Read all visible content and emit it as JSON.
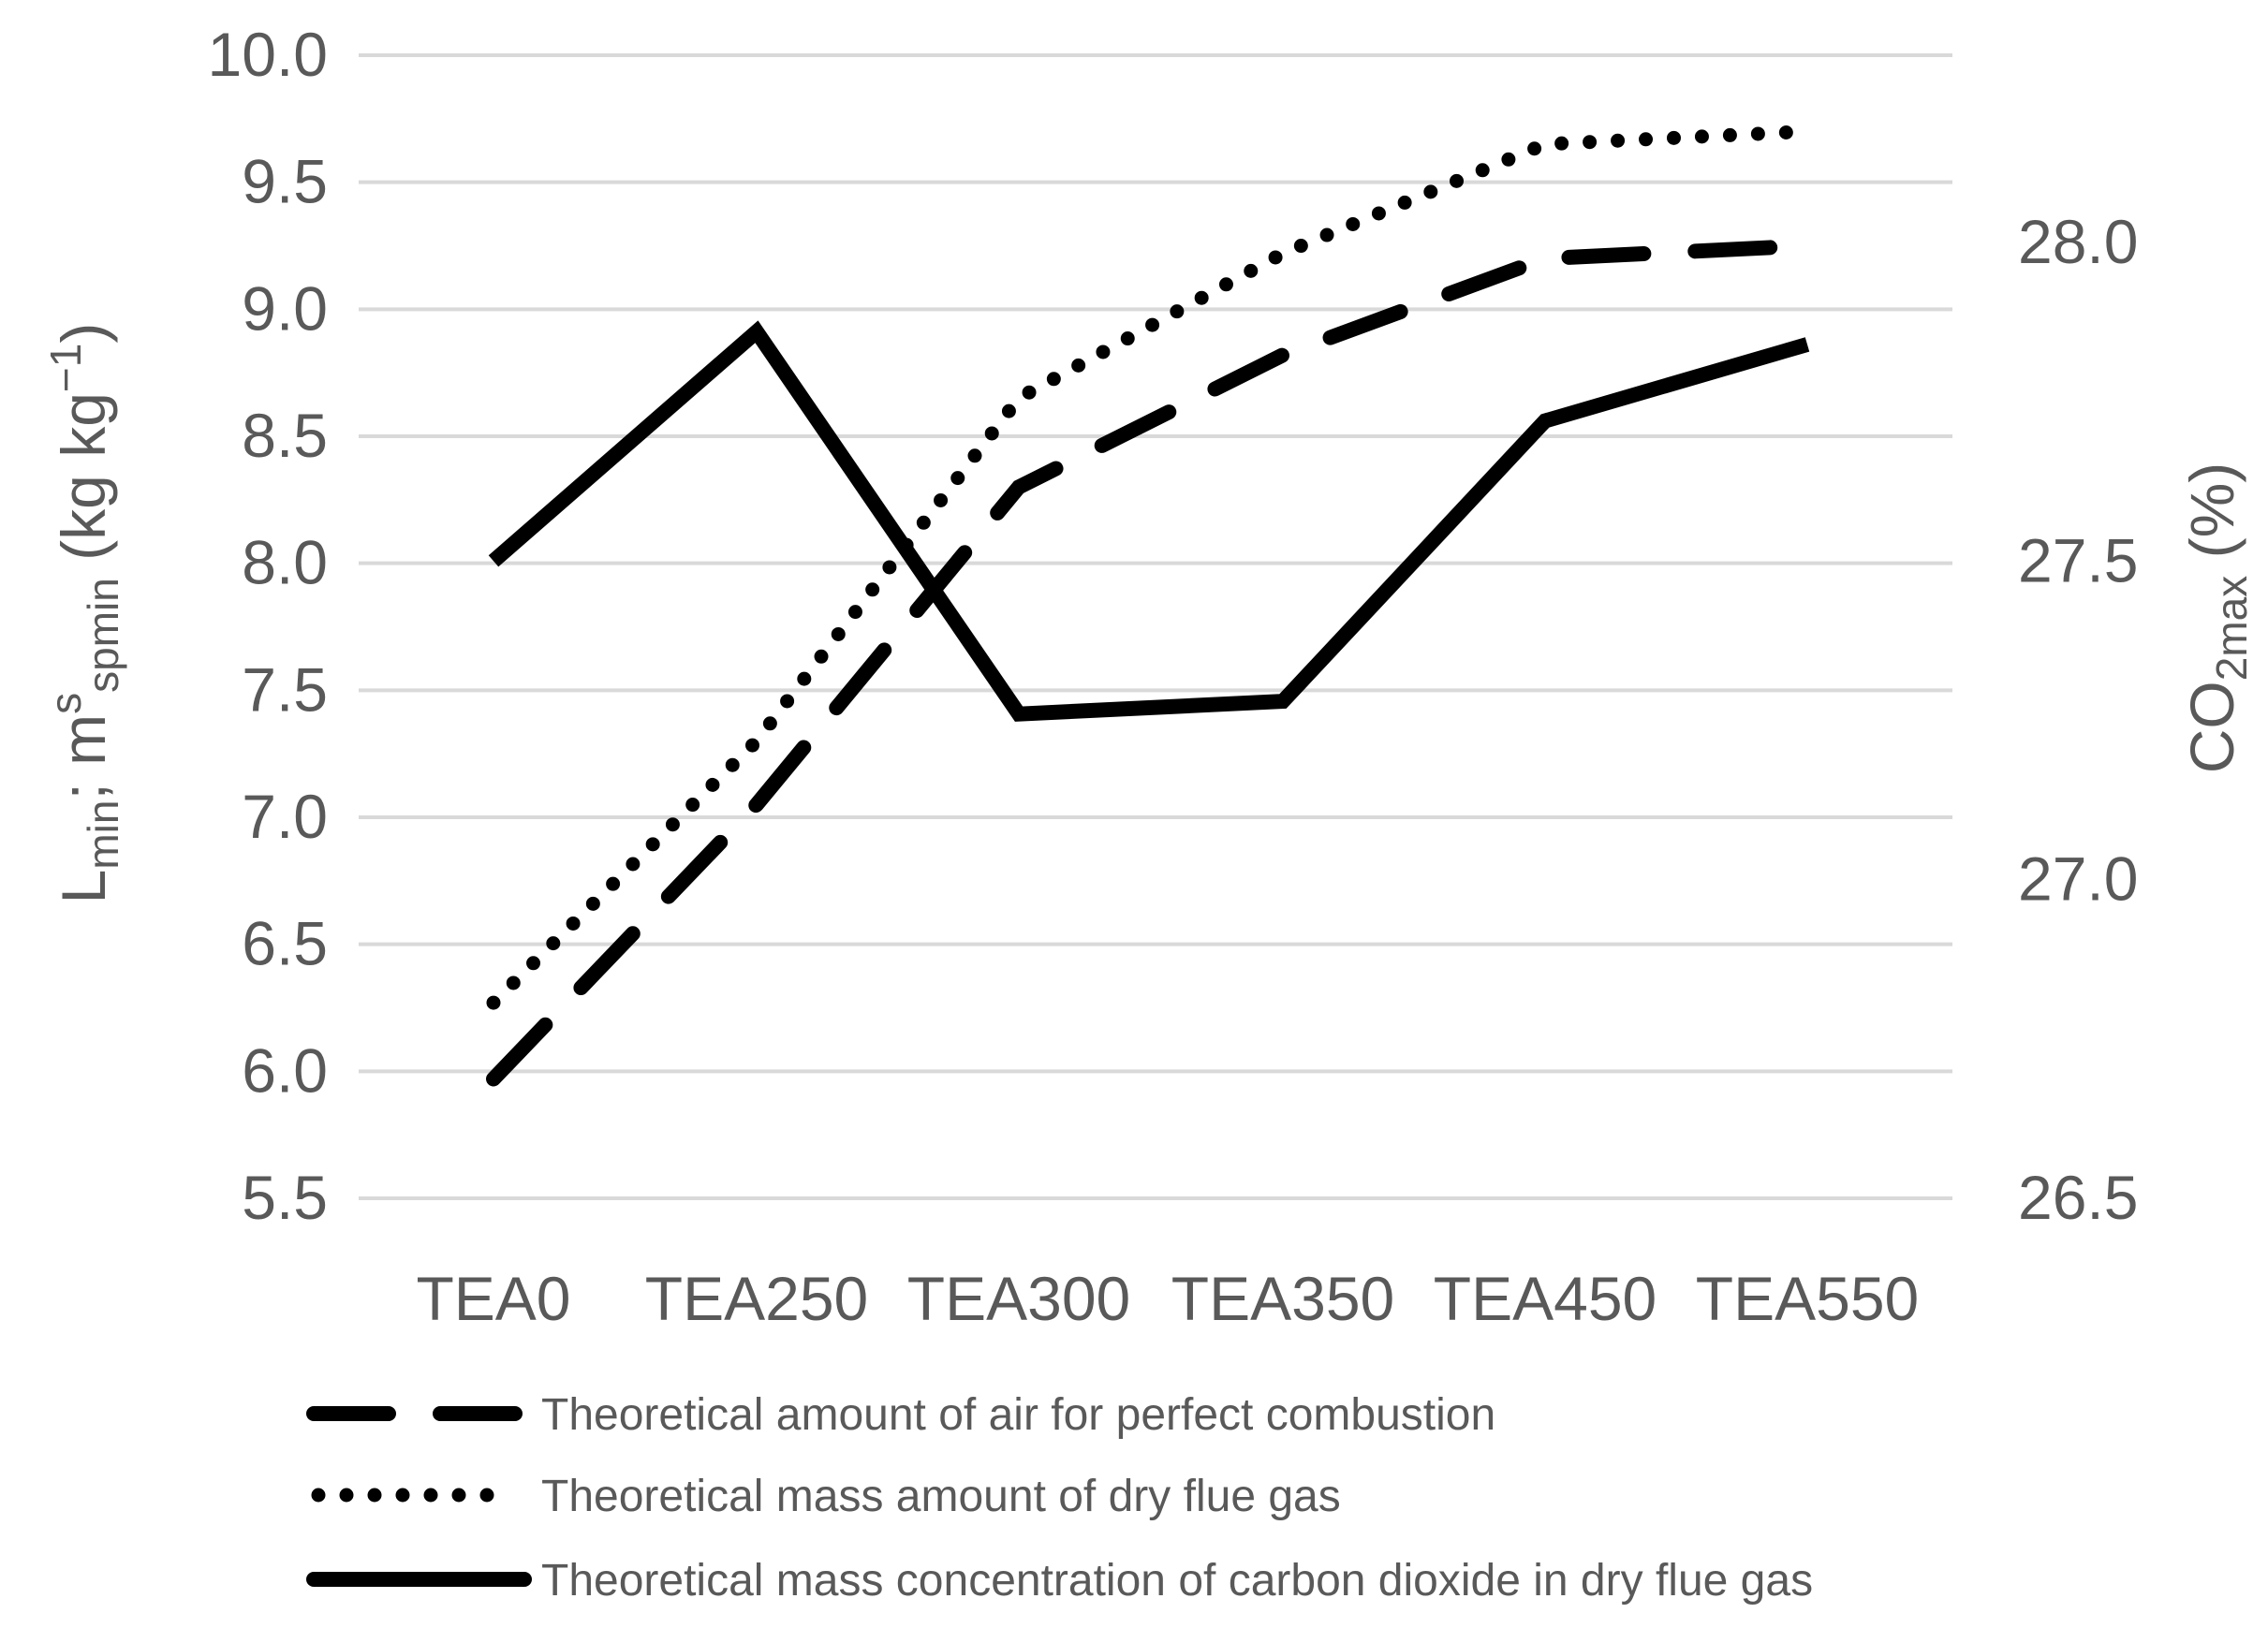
{
  "chart_data": {
    "type": "line",
    "categories": [
      "TEA0",
      "TEA250",
      "TEA300",
      "TEA350",
      "TEA450",
      "TEA550"
    ],
    "y_axis_left": {
      "label_main": "L",
      "label_sub1": "min",
      "label_mid": "; m",
      "label_sup": "s",
      "label_sub2": "spmin",
      "label_unit": " (kg kg",
      "label_unit_sup": "−1",
      "label_close": ")",
      "ylim": [
        5.5,
        10.0
      ],
      "ticks": [
        "10.0",
        "9.5",
        "9.0",
        "8.5",
        "8.0",
        "7.5",
        "7.0",
        "6.5",
        "6.0",
        "5.5"
      ],
      "grid": true
    },
    "y_axis_right": {
      "label_main": "CO",
      "label_sub": "2max",
      "label_unit": " (%)",
      "ylim": [
        26.5,
        28.0
      ],
      "ticks": [
        "28.0",
        "27.5",
        "27.0",
        "26.5"
      ]
    },
    "series": [
      {
        "name": "Theoretical amount of air for perfect combustion",
        "axis": "left",
        "style": "dashed",
        "color": "#000000",
        "values": [
          5.97,
          7.05,
          8.3,
          8.82,
          9.2,
          9.25
        ]
      },
      {
        "name": "Theoretical mass amount of dry flue gas",
        "axis": "left",
        "style": "dotted",
        "color": "#000000",
        "values": [
          6.27,
          7.3,
          8.65,
          9.22,
          9.65,
          9.7
        ]
      },
      {
        "name": "Theoretical mass concentration of carbon dioxide in dry flue gas",
        "axis": "right",
        "style": "solid",
        "color": "#000000",
        "values": [
          27.5,
          27.86,
          27.26,
          27.28,
          27.72,
          27.84
        ]
      }
    ],
    "legend_position": "bottom"
  }
}
